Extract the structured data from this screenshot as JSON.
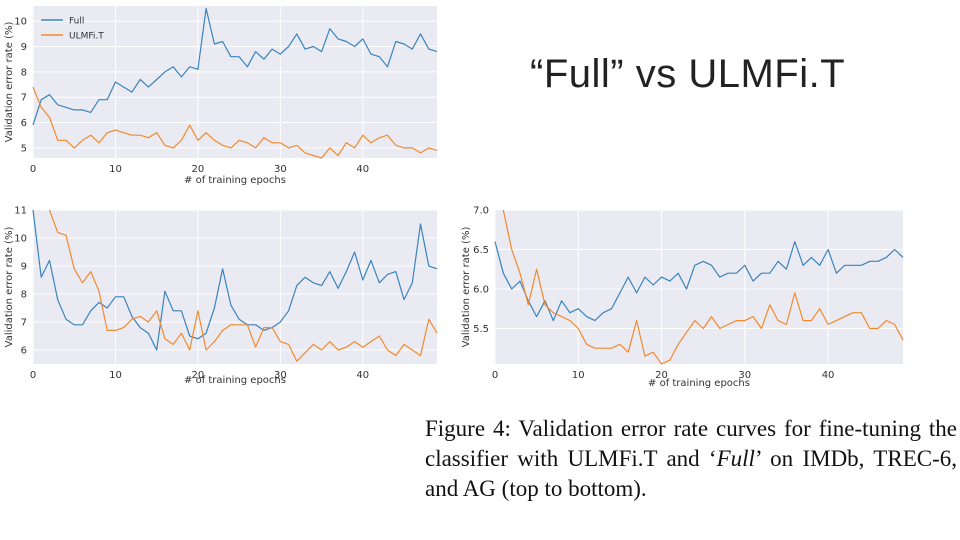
{
  "slide": {
    "title": "“Full” vs ULMFi.T"
  },
  "caption": {
    "prefix": "Figure 4:  Validation error rate curves for fine-tuning the classifier with ULMFi.T and ‘",
    "italic": "Full",
    "suffix": "’ on IMDb, TREC-6, and AG (top to bottom)."
  },
  "colors": {
    "full": "#3a84be",
    "ulmfit": "#f28a2e",
    "plot_bg": "#eaeaf2",
    "grid": "#ffffff"
  },
  "chart_data": [
    {
      "type": "line",
      "xlabel": "# of training epochs",
      "ylabel": "Validation error rate (%)",
      "xlim": [
        0,
        49
      ],
      "ylim": [
        4.6,
        10.6
      ],
      "xticks": [
        0,
        10,
        20,
        30,
        40
      ],
      "yticks": [
        5,
        6,
        7,
        8,
        9,
        10
      ],
      "grid": true,
      "legend": "top-left",
      "series": [
        {
          "name": "Full",
          "color": "#3a84be",
          "y": [
            5.9,
            6.9,
            7.1,
            6.7,
            6.6,
            6.5,
            6.5,
            6.4,
            6.9,
            6.9,
            7.6,
            7.4,
            7.2,
            7.7,
            7.4,
            7.7,
            8.0,
            8.2,
            7.8,
            8.2,
            8.1,
            10.5,
            9.1,
            9.2,
            8.6,
            8.6,
            8.2,
            8.8,
            8.5,
            8.9,
            8.7,
            9.0,
            9.5,
            8.9,
            9.0,
            8.8,
            9.7,
            9.3,
            9.2,
            9.0,
            9.3,
            8.7,
            8.6,
            8.2,
            9.2,
            9.1,
            8.9,
            9.5,
            8.9,
            8.8
          ]
        },
        {
          "name": "ULMFi.T",
          "color": "#f28a2e",
          "y": [
            7.4,
            6.6,
            6.2,
            5.3,
            5.3,
            5.0,
            5.3,
            5.5,
            5.2,
            5.6,
            5.7,
            5.6,
            5.5,
            5.5,
            5.4,
            5.6,
            5.1,
            5.0,
            5.3,
            5.9,
            5.3,
            5.6,
            5.3,
            5.1,
            5.0,
            5.3,
            5.2,
            5.0,
            5.4,
            5.2,
            5.2,
            5.0,
            5.1,
            4.8,
            4.7,
            4.6,
            5.0,
            4.7,
            5.2,
            5.0,
            5.5,
            5.2,
            5.4,
            5.5,
            5.1,
            5.0,
            5.0,
            4.8,
            5.0,
            4.9
          ]
        }
      ]
    },
    {
      "type": "line",
      "xlabel": "# of training epochs",
      "ylabel": "Validation error rate (%)",
      "xlim": [
        0,
        49
      ],
      "ylim": [
        5.5,
        11
      ],
      "xticks": [
        0,
        10,
        20,
        30,
        40
      ],
      "yticks": [
        6,
        7,
        8,
        9,
        10,
        11
      ],
      "grid": true,
      "series": [
        {
          "name": "Full",
          "color": "#3a84be",
          "y": [
            11.0,
            8.6,
            9.2,
            7.8,
            7.1,
            6.9,
            6.9,
            7.4,
            7.7,
            7.5,
            7.9,
            7.9,
            7.2,
            6.8,
            6.6,
            6.0,
            8.1,
            7.4,
            7.4,
            6.5,
            6.4,
            6.6,
            7.5,
            8.9,
            7.6,
            7.1,
            6.9,
            6.9,
            6.7,
            6.8,
            7.0,
            7.4,
            8.3,
            8.6,
            8.4,
            8.3,
            8.8,
            8.2,
            8.8,
            9.5,
            8.5,
            9.2,
            8.4,
            8.7,
            8.8,
            7.8,
            8.4,
            10.5,
            9.0,
            8.9
          ]
        },
        {
          "name": "ULMFi.T",
          "color": "#f28a2e",
          "y": [
            null,
            null,
            11.0,
            10.2,
            10.1,
            8.9,
            8.4,
            8.8,
            8.1,
            6.7,
            6.7,
            6.8,
            7.1,
            7.2,
            7.0,
            7.4,
            6.4,
            6.2,
            6.6,
            6.0,
            7.4,
            6.0,
            6.3,
            6.7,
            6.9,
            6.9,
            6.9,
            6.1,
            6.8,
            6.8,
            6.3,
            6.2,
            5.6,
            5.9,
            6.2,
            6.0,
            6.3,
            6.0,
            6.1,
            6.3,
            6.1,
            6.3,
            6.5,
            6.0,
            5.8,
            6.2,
            6.0,
            5.8,
            7.1,
            6.6
          ]
        }
      ]
    },
    {
      "type": "line",
      "xlabel": "# of training epochs",
      "ylabel": "Validation error rate (%)",
      "xlim": [
        0,
        49
      ],
      "ylim": [
        5.05,
        7.0
      ],
      "xticks": [
        0,
        10,
        20,
        30,
        40
      ],
      "yticks": [
        5.5,
        6.0,
        6.5,
        7.0
      ],
      "ytick_labels": [
        "5.5",
        "6.0",
        "6.5",
        "7.0"
      ],
      "grid": true,
      "series": [
        {
          "name": "Full",
          "color": "#3a84be",
          "y": [
            6.6,
            6.2,
            6.0,
            6.1,
            5.85,
            5.65,
            5.85,
            5.6,
            5.85,
            5.7,
            5.75,
            5.65,
            5.6,
            5.7,
            5.75,
            5.95,
            6.15,
            5.95,
            6.15,
            6.05,
            6.15,
            6.1,
            6.2,
            6.0,
            6.3,
            6.35,
            6.3,
            6.15,
            6.2,
            6.2,
            6.3,
            6.1,
            6.2,
            6.2,
            6.35,
            6.25,
            6.6,
            6.3,
            6.4,
            6.3,
            6.5,
            6.2,
            6.3,
            6.3,
            6.3,
            6.35,
            6.35,
            6.4,
            6.5,
            6.4
          ]
        },
        {
          "name": "ULMFi.T",
          "color": "#f28a2e",
          "y": [
            null,
            7.0,
            6.5,
            6.2,
            5.8,
            6.25,
            5.8,
            5.7,
            5.65,
            5.6,
            5.5,
            5.3,
            5.25,
            5.25,
            5.25,
            5.3,
            5.2,
            5.6,
            5.15,
            5.2,
            5.05,
            5.1,
            5.3,
            5.45,
            5.6,
            5.5,
            5.65,
            5.5,
            5.55,
            5.6,
            5.6,
            5.65,
            5.5,
            5.8,
            5.6,
            5.55,
            5.95,
            5.6,
            5.6,
            5.75,
            5.55,
            5.6,
            5.65,
            5.7,
            5.7,
            5.5,
            5.5,
            5.6,
            5.55,
            5.35
          ]
        }
      ]
    }
  ]
}
